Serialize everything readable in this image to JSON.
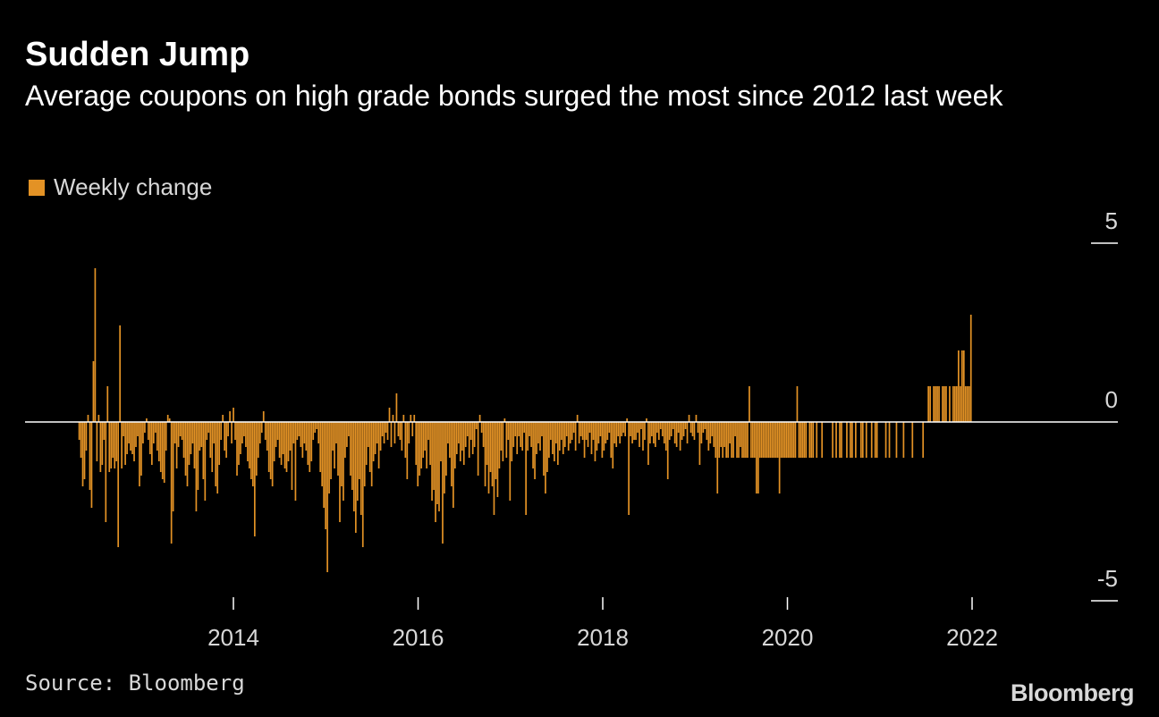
{
  "header": {
    "title": "Sudden Jump",
    "subtitle": "Average coupons on high grade bonds surged the most since 2012 last week"
  },
  "footer": {
    "source": "Source: Bloomberg",
    "brand": "Bloomberg"
  },
  "colors": {
    "background": "#000000",
    "bar": "#e39225",
    "axis": "#ffffff",
    "tick_text": "#d8d8d8"
  },
  "chart_data": {
    "type": "bar",
    "title": "Sudden Jump",
    "subtitle": "Average coupons on high grade bonds surged the most since 2012 last week",
    "legend": {
      "position": "top-left",
      "entries": [
        {
          "name": "Weekly change",
          "color": "#e39225"
        }
      ]
    },
    "x_ticks": [
      2014,
      2016,
      2018,
      2020,
      2022
    ],
    "y_ticks": [
      5,
      0,
      -5
    ],
    "xlim": [
      2012.0,
      2023.3
    ],
    "ylim": [
      -5,
      5
    ],
    "grid": false,
    "series": [
      {
        "name": "Weekly change",
        "x_start": 2012.33,
        "x_step": 0.0192,
        "values": [
          -0.5,
          -1.0,
          -1.8,
          -1.6,
          -0.8,
          0.2,
          -1.9,
          -2.4,
          1.7,
          4.3,
          -1.1,
          0.2,
          -1.4,
          -1.2,
          -0.5,
          -2.8,
          1.0,
          -1.4,
          -1.3,
          -1.0,
          -1.3,
          -1.1,
          -3.5,
          2.7,
          -1.3,
          -0.4,
          -1.2,
          -0.9,
          -0.6,
          -0.8,
          -0.9,
          -1.1,
          -0.7,
          -0.4,
          -1.8,
          -1.5,
          -0.6,
          -0.3,
          0.1,
          -0.5,
          -0.9,
          -1.2,
          -0.6,
          -0.3,
          -0.8,
          -1.1,
          -1.4,
          -1.6,
          -1.7,
          -0.8,
          0.2,
          0.1,
          -3.4,
          -2.5,
          -0.6,
          -1.3,
          -0.7,
          -0.4,
          -0.5,
          -1.0,
          -1.5,
          -1.8,
          -1.2,
          -0.9,
          -0.6,
          -1.3,
          -2.5,
          -1.9,
          -0.8,
          -0.7,
          -1.6,
          -2.2,
          -0.5,
          -0.3,
          -1.0,
          -1.4,
          -0.6,
          -1.8,
          -2.0,
          -1.2,
          -0.5,
          0.2,
          -0.8,
          -1.0,
          -0.4,
          0.3,
          -0.6,
          0.4,
          -0.5,
          -1.5,
          -1.2,
          -0.9,
          -0.6,
          -0.4,
          -0.7,
          -1.1,
          -1.3,
          -1.6,
          -1.8,
          -3.2,
          -1.5,
          -1.0,
          -0.6,
          -0.3,
          0.3,
          -0.5,
          -0.8,
          -1.4,
          -1.6,
          -1.8,
          -1.1,
          -0.7,
          -0.5,
          -1.0,
          -1.2,
          -0.9,
          -1.3,
          -1.4,
          -1.1,
          -0.8,
          -1.9,
          -0.6,
          -2.2,
          -0.5,
          -0.4,
          -0.7,
          -1.0,
          -0.6,
          -0.8,
          -1.2,
          -1.4,
          -1.1,
          -0.5,
          -0.3,
          -0.2,
          -0.6,
          -1.4,
          -1.8,
          -2.4,
          -3.0,
          -4.2,
          -2.0,
          -1.6,
          -0.8,
          -1.3,
          -0.6,
          -1.5,
          -2.8,
          -1.8,
          -2.2,
          -1.0,
          -0.7,
          -0.4,
          -1.5,
          -1.9,
          -2.5,
          -3.1,
          -2.2,
          -1.6,
          -2.6,
          -3.5,
          -1.8,
          -1.2,
          -0.7,
          -1.4,
          -1.8,
          -1.1,
          -0.9,
          -0.6,
          -1.3,
          -0.8,
          -0.4,
          -0.6,
          -0.3,
          -0.5,
          0.4,
          -0.7,
          0.2,
          -0.6,
          0.8,
          -0.4,
          -0.5,
          -0.8,
          0.2,
          -1.0,
          -1.6,
          -0.6,
          0.2,
          -0.4,
          0.2,
          -1.2,
          -1.8,
          -1.5,
          -1.3,
          -1.0,
          -0.8,
          -1.3,
          -0.5,
          -1.2,
          -2.2,
          -1.9,
          -2.8,
          -2.3,
          -2.5,
          -1.1,
          -3.4,
          -2.0,
          -1.5,
          -0.6,
          -1.0,
          -1.8,
          -2.4,
          -1.3,
          -0.9,
          -0.6,
          -1.1,
          -0.8,
          -1.2,
          -0.7,
          -0.4,
          -1.0,
          -0.5,
          -0.9,
          -0.7,
          -0.2,
          -1.5,
          0.2,
          -0.3,
          -0.7,
          -1.8,
          -1.2,
          -2.0,
          -1.4,
          -1.8,
          -2.6,
          -1.6,
          -2.1,
          -1.3,
          -0.8,
          -1.1,
          0.1,
          -1.0,
          -0.5,
          -2.2,
          -1.1,
          -0.7,
          -0.4,
          -0.9,
          -0.4,
          -0.7,
          -0.8,
          -0.3,
          -2.6,
          -0.8,
          -0.4,
          -0.7,
          -1.3,
          -1.6,
          -0.9,
          -0.6,
          -0.8,
          -0.4,
          -1.5,
          -2.0,
          -1.4,
          -1.0,
          -0.5,
          -0.9,
          -1.1,
          -0.6,
          -1.2,
          -0.8,
          -0.5,
          -0.9,
          -0.7,
          -0.4,
          -0.8,
          -0.6,
          -0.5,
          -0.3,
          -0.8,
          0.2,
          -0.6,
          -0.4,
          -0.5,
          -1.0,
          -0.5,
          -0.7,
          -0.3,
          -0.9,
          -0.5,
          -1.1,
          -0.8,
          -0.6,
          -0.4,
          -1.0,
          -0.8,
          -0.6,
          -0.5,
          -0.3,
          -1.0,
          -1.3,
          -0.6,
          -0.7,
          -0.4,
          -0.6,
          -0.4,
          -0.3,
          -0.4,
          0.1,
          -2.6,
          -0.4,
          -0.6,
          -0.5,
          -0.5,
          -0.3,
          -0.7,
          -0.2,
          -0.8,
          -0.5,
          0.1,
          -1.2,
          -0.6,
          -0.4,
          -0.6,
          -0.7,
          -0.3,
          -0.5,
          -0.2,
          -0.4,
          -0.6,
          -0.8,
          -1.6,
          -0.5,
          -0.4,
          -0.2,
          -0.6,
          -0.7,
          -0.3,
          -0.8,
          -0.5,
          -0.4,
          -0.2,
          -0.6,
          0.2,
          -0.3,
          -0.4,
          -0.5,
          0.2,
          -0.3,
          -1.2,
          -0.6,
          -0.3,
          -0.2,
          -0.5,
          -0.8,
          -0.6,
          -0.4,
          -0.7,
          -1.0,
          -2.0,
          -1.0,
          -0.7,
          -1.0,
          -0.7,
          -1.0,
          -1.0,
          -0.6,
          -1.0,
          -1.0,
          -0.4,
          -1.0,
          -1.0,
          -0.7,
          -1.0,
          -1.0,
          -1.0,
          -1.0,
          1.0,
          -1.0,
          -1.0,
          -1.0,
          -2.0,
          -2.0,
          -1.0,
          -1.0,
          -1.0,
          -1.0,
          -1.0,
          -1.0,
          -1.0,
          -1.0,
          -1.0,
          -1.0,
          -1.0,
          -2.0,
          -1.0,
          -1.0,
          -1.0,
          -1.0,
          -1.0,
          -1.0,
          -1.0,
          -1.0,
          -1.0,
          1.0,
          -1.0,
          -1.0,
          -1.0,
          -1.0,
          -1.0,
          0,
          -1.0,
          -1.0,
          -1.0,
          0,
          -1.0,
          0,
          0,
          -1.0,
          0,
          0,
          0,
          0,
          0,
          -1.0,
          0,
          -1.0,
          0,
          -1.0,
          -1.0,
          0,
          0,
          -1.0,
          0,
          -1.0,
          -1.0,
          0,
          -1.0,
          0,
          0,
          -1.0,
          -1.0,
          0,
          -1.0,
          0,
          0,
          -1.0,
          0,
          -1.0,
          -1.0,
          0,
          0,
          0,
          0,
          -1.0,
          0,
          -1.0,
          0,
          0,
          0,
          -1.0,
          0,
          0,
          0,
          -1.0,
          0,
          0,
          0,
          0,
          -1.0,
          0,
          0,
          0,
          0,
          0,
          -1.0,
          0,
          0,
          1.0,
          1.0,
          0,
          1.0,
          1.0,
          1.0,
          1.0,
          0,
          1.0,
          1.0,
          1.0,
          0,
          1.0,
          0,
          1.0,
          1.0,
          1.0,
          2.0,
          1.0,
          2.0,
          2.0,
          1.0,
          1.0,
          1.0,
          3.0
        ]
      }
    ]
  }
}
